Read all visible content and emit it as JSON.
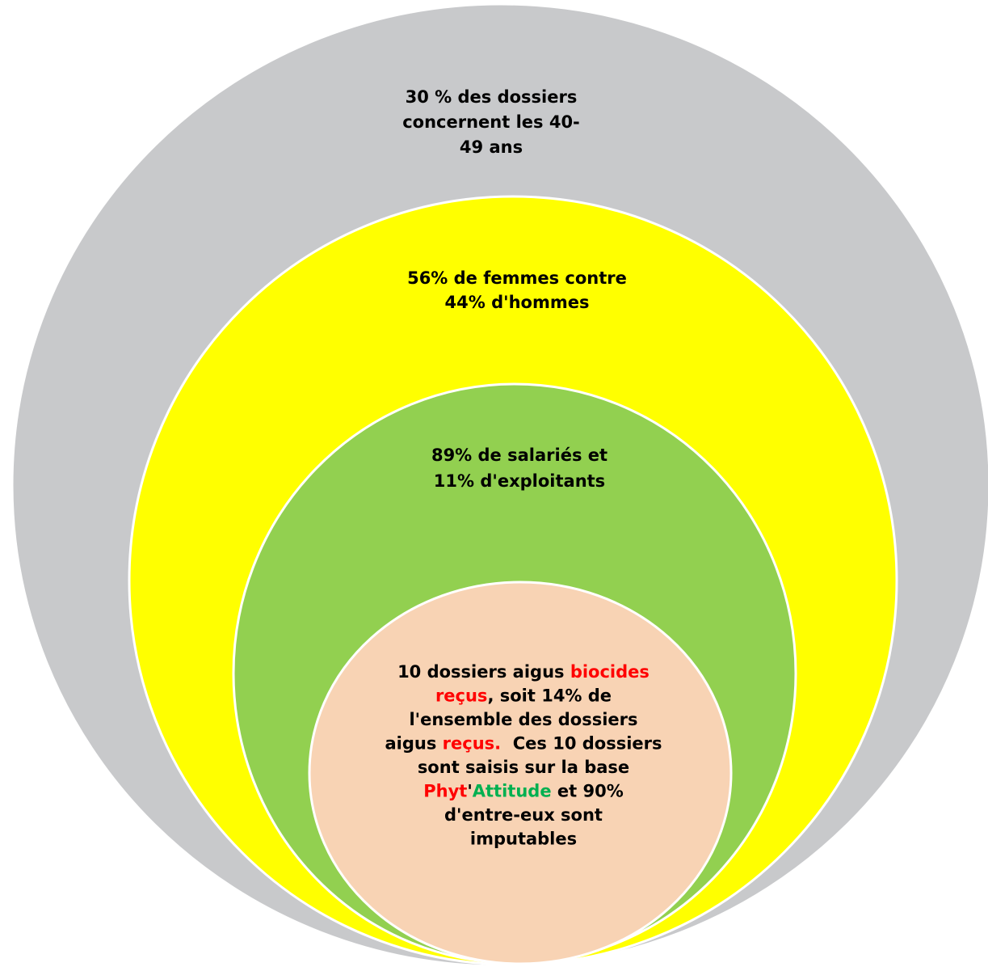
{
  "nodes": [
    {
      "fill": "#c8c9cb",
      "lines": [
        "30 % des dossiers",
        "concernent les 40-",
        "49 ans"
      ]
    },
    {
      "fill": "#ffff00",
      "lines": [
        "56% de femmes contre",
        "44% d'hommes"
      ]
    },
    {
      "fill": "#92d050",
      "lines": [
        "89% de salariés et",
        "11% d'exploitants"
      ]
    },
    {
      "fill": "#f8d3b4",
      "lines": [
        [
          {
            "text": "10 dossiers aigus "
          },
          {
            "text": "biocides",
            "color": "#ff0000"
          }
        ],
        [
          {
            "text": "reçus",
            "color": "#ff0000"
          },
          {
            "text": ", soit 14% de"
          }
        ],
        [
          {
            "text": "l'ensemble des dossiers"
          }
        ],
        [
          {
            "text": "aigus "
          },
          {
            "text": "reçus.",
            "color": "#ff0000"
          },
          {
            "text": "  Ces 10 dossiers"
          }
        ],
        [
          {
            "text": "sont saisis sur la base"
          }
        ],
        [
          {
            "text": "Phyt",
            "color": "#ff0000"
          },
          {
            "text": "'"
          },
          {
            "text": "Attitude",
            "color": "#00b050"
          },
          {
            "text": " et 90%"
          }
        ],
        [
          {
            "text": "d'entre-eux sont"
          }
        ],
        [
          {
            "text": "imputables"
          }
        ]
      ]
    }
  ]
}
